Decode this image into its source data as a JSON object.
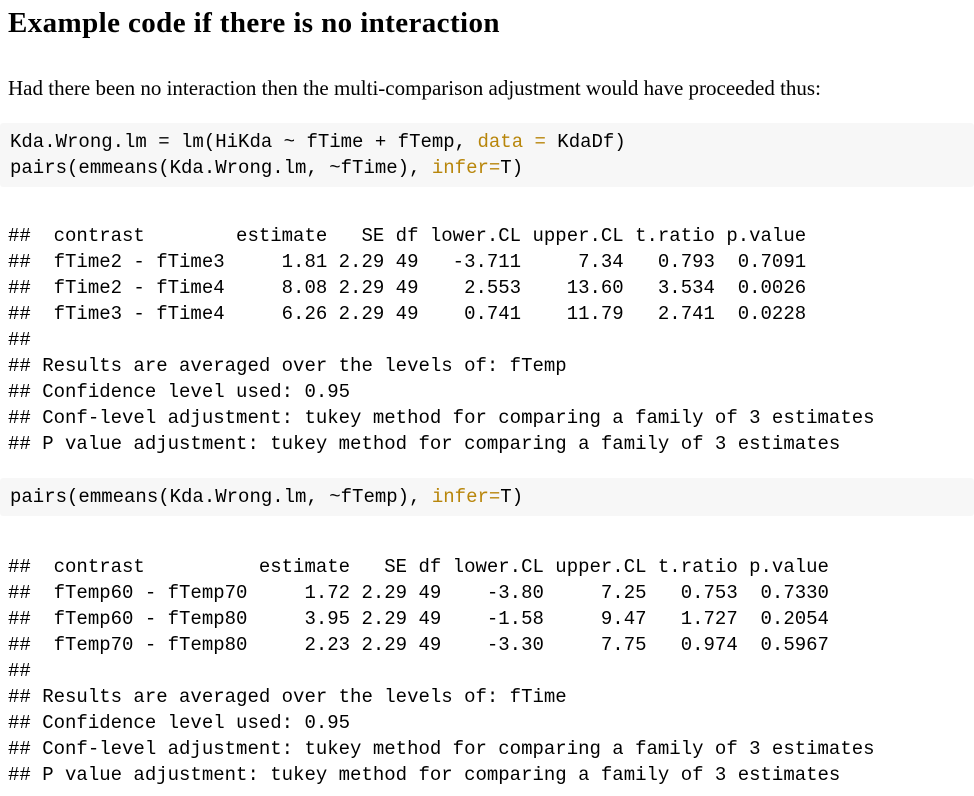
{
  "document": {
    "heading": "Example code if there is no interaction",
    "intro": "Had there been no interaction then the multi-comparison adjustment would have proceeded thus:"
  },
  "colors": {
    "page_background": "#ffffff",
    "text": "#000000",
    "code_background": "#f7f7f7",
    "code_argument_gold": "#b8860b"
  },
  "code_blocks": [
    {
      "lines": [
        [
          {
            "t": "Kda.Wrong.lm = lm(HiKda ~ fTime + fTemp, ",
            "c": "plain"
          },
          {
            "t": "data =",
            "c": "arg"
          },
          {
            "t": " KdaDf)",
            "c": "plain"
          }
        ],
        [
          {
            "t": "pairs(emmeans(Kda.Wrong.lm, ~fTime), ",
            "c": "plain"
          },
          {
            "t": "infer=",
            "c": "arg"
          },
          {
            "t": "T)",
            "c": "plain"
          }
        ]
      ]
    },
    {
      "lines": [
        [
          {
            "t": "pairs(emmeans(Kda.Wrong.lm, ~fTemp), ",
            "c": "plain"
          },
          {
            "t": "infer=",
            "c": "arg"
          },
          {
            "t": "T)",
            "c": "plain"
          }
        ]
      ]
    }
  ],
  "output_blocks": [
    {
      "lines": [
        "##  contrast        estimate   SE df lower.CL upper.CL t.ratio p.value",
        "##  fTime2 - fTime3     1.81 2.29 49   -3.711     7.34   0.793  0.7091",
        "##  fTime2 - fTime4     8.08 2.29 49    2.553    13.60   3.534  0.0026",
        "##  fTime3 - fTime4     6.26 2.29 49    0.741    11.79   2.741  0.0228",
        "##",
        "## Results are averaged over the levels of: fTemp",
        "## Confidence level used: 0.95",
        "## Conf-level adjustment: tukey method for comparing a family of 3 estimates",
        "## P value adjustment: tukey method for comparing a family of 3 estimates"
      ],
      "table": {
        "columns": [
          "contrast",
          "estimate",
          "SE",
          "df",
          "lower.CL",
          "upper.CL",
          "t.ratio",
          "p.value"
        ],
        "rows": [
          [
            "fTime2 - fTime3",
            "1.81",
            "2.29",
            "49",
            "-3.711",
            "7.34",
            "0.793",
            "0.7091"
          ],
          [
            "fTime2 - fTime4",
            "8.08",
            "2.29",
            "49",
            "2.553",
            "13.60",
            "3.534",
            "0.0026"
          ],
          [
            "fTime3 - fTime4",
            "6.26",
            "2.29",
            "49",
            "0.741",
            "11.79",
            "2.741",
            "0.0228"
          ]
        ],
        "notes": [
          "Results are averaged over the levels of: fTemp",
          "Confidence level used: 0.95",
          "Conf-level adjustment: tukey method for comparing a family of 3 estimates",
          "P value adjustment: tukey method for comparing a family of 3 estimates"
        ]
      }
    },
    {
      "lines": [
        "##  contrast          estimate   SE df lower.CL upper.CL t.ratio p.value",
        "##  fTemp60 - fTemp70     1.72 2.29 49    -3.80     7.25   0.753  0.7330",
        "##  fTemp60 - fTemp80     3.95 2.29 49    -1.58     9.47   1.727  0.2054",
        "##  fTemp70 - fTemp80     2.23 2.29 49    -3.30     7.75   0.974  0.5967",
        "##",
        "## Results are averaged over the levels of: fTime",
        "## Confidence level used: 0.95",
        "## Conf-level adjustment: tukey method for comparing a family of 3 estimates",
        "## P value adjustment: tukey method for comparing a family of 3 estimates"
      ],
      "table": {
        "columns": [
          "contrast",
          "estimate",
          "SE",
          "df",
          "lower.CL",
          "upper.CL",
          "t.ratio",
          "p.value"
        ],
        "rows": [
          [
            "fTemp60 - fTemp70",
            "1.72",
            "2.29",
            "49",
            "-3.80",
            "7.25",
            "0.753",
            "0.7330"
          ],
          [
            "fTemp60 - fTemp80",
            "3.95",
            "2.29",
            "49",
            "-1.58",
            "9.47",
            "1.727",
            "0.2054"
          ],
          [
            "fTemp70 - fTemp80",
            "2.23",
            "2.29",
            "49",
            "-3.30",
            "7.75",
            "0.974",
            "0.5967"
          ]
        ],
        "notes": [
          "Results are averaged over the levels of: fTime",
          "Confidence level used: 0.95",
          "Conf-level adjustment: tukey method for comparing a family of 3 estimates",
          "P value adjustment: tukey method for comparing a family of 3 estimates"
        ]
      }
    }
  ]
}
